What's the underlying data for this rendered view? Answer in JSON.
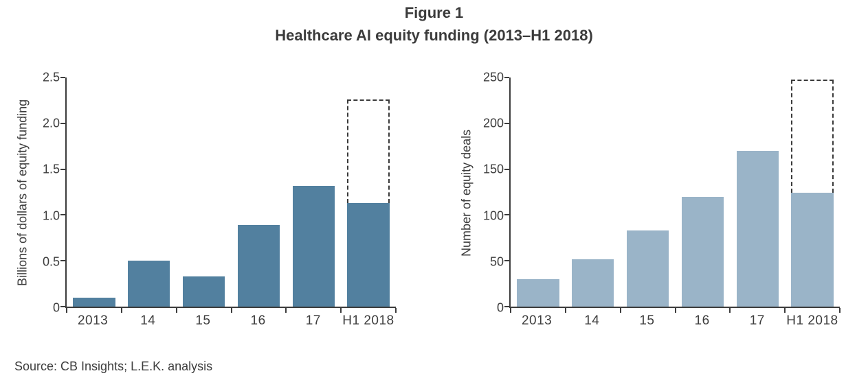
{
  "figure": {
    "title": "Figure 1",
    "subtitle": "Healthcare AI equity funding (2013–H1 2018)",
    "source": "Source: CB Insights; L.E.K. analysis"
  },
  "colors": {
    "left_bar": "#52809f",
    "right_bar": "#9ab4c8",
    "axis": "#3c3c3c",
    "text": "#3d3d3d",
    "dashed_outline": "#3a3a3a",
    "background": "#ffffff"
  },
  "chart_data": [
    {
      "type": "bar",
      "title": "",
      "xlabel": "",
      "ylabel": "Billions of dollars of equity funding",
      "categories": [
        "2013",
        "14",
        "15",
        "16",
        "17",
        "H1 2018"
      ],
      "values": [
        0.1,
        0.5,
        0.33,
        0.89,
        1.32,
        1.13
      ],
      "ylim": [
        0,
        2.5
      ],
      "yticks": [
        0,
        0.5,
        1.0,
        1.5,
        2.0,
        2.5
      ],
      "ytick_labels": [
        "0",
        "0.5",
        "1.0",
        "1.5",
        "2.0",
        "2.5"
      ],
      "grid": false,
      "legend": "none",
      "bar_color": "#52809f",
      "annualized_projection": {
        "category": "H1 2018",
        "value": 2.26,
        "style": "dashed-outline"
      }
    },
    {
      "type": "bar",
      "title": "",
      "xlabel": "",
      "ylabel": "Number of equity deals",
      "categories": [
        "2013",
        "14",
        "15",
        "16",
        "17",
        "H1 2018"
      ],
      "values": [
        30,
        52,
        83,
        120,
        170,
        124
      ],
      "ylim": [
        0,
        250
      ],
      "yticks": [
        0,
        50,
        100,
        150,
        200,
        250
      ],
      "ytick_labels": [
        "0",
        "50",
        "100",
        "150",
        "200",
        "250"
      ],
      "grid": false,
      "legend": "none",
      "bar_color": "#9ab4c8",
      "annualized_projection": {
        "category": "H1 2018",
        "value": 248,
        "style": "dashed-outline"
      }
    }
  ]
}
